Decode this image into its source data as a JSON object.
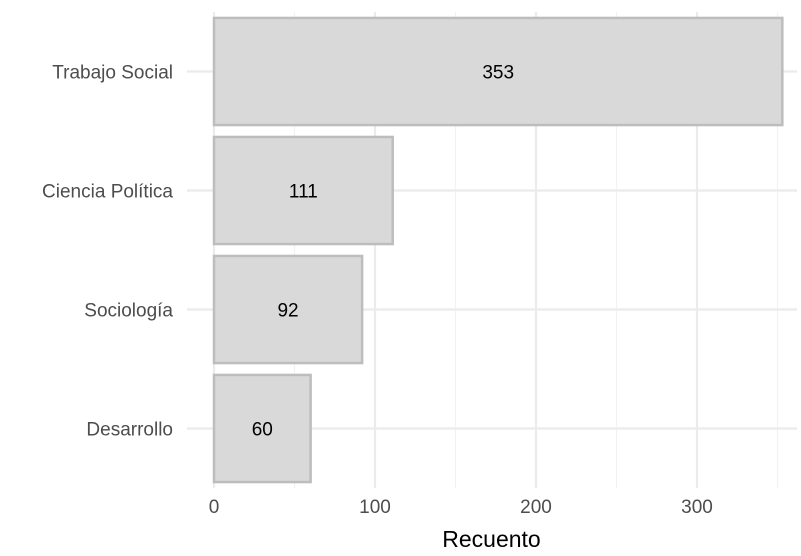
{
  "chart_data": {
    "type": "bar",
    "orientation": "horizontal",
    "categories": [
      "Trabajo Social",
      "Ciencia Política",
      "Sociología",
      "Desarrollo"
    ],
    "values": [
      353,
      111,
      92,
      60
    ],
    "data_labels": [
      "353",
      "111",
      "92",
      "60"
    ],
    "xlabel": "Recuento",
    "ylabel": "",
    "title": "",
    "xlim": [
      0,
      360
    ],
    "x_ticks": [
      0,
      100,
      200,
      300
    ],
    "x_tick_labels": [
      "0",
      "100",
      "200",
      "300"
    ],
    "grid": true,
    "legend": "none",
    "colors": {
      "bar_fill": "#d9d9d9",
      "bar_stroke": "#bdbdbd",
      "grid_major": "#ebebeb",
      "grid_minor": "#f2f2f2",
      "tick_text": "#4d4d4d"
    }
  }
}
